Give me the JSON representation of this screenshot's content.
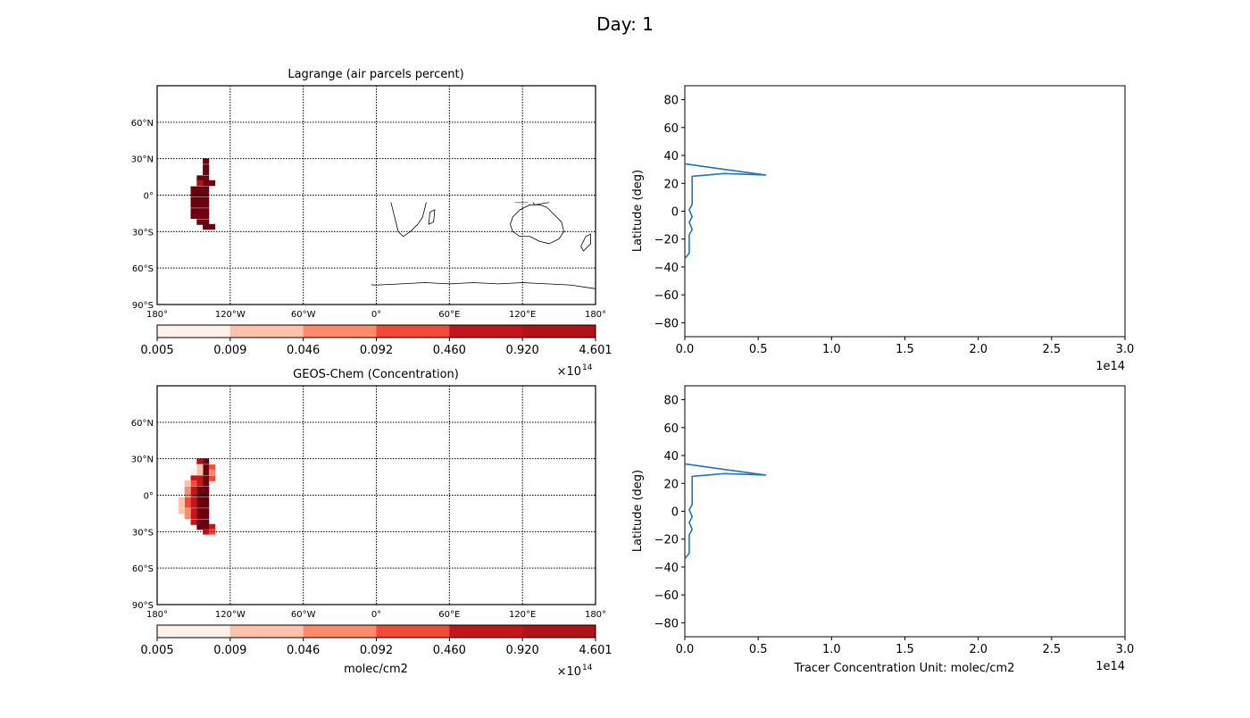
{
  "figure": {
    "title": "Day: 1"
  },
  "chart_data": [
    {
      "type": "heatmap",
      "title": "Lagrange (air parcels percent)",
      "projection": "equirectangular",
      "xlim": [
        -180,
        180
      ],
      "ylim": [
        -90,
        90
      ],
      "xticks": [
        -180,
        -120,
        -60,
        0,
        60,
        120,
        180
      ],
      "xtick_labels": [
        "180°",
        "120°W",
        "60°W",
        "0°",
        "60°E",
        "120°E",
        "180°"
      ],
      "yticks": [
        60,
        30,
        0,
        -30,
        -60,
        -90
      ],
      "ytick_labels": [
        "60°N",
        "30°N",
        "0°",
        "30°S",
        "60°S",
        "90°S"
      ],
      "grid": true,
      "coastlines": true,
      "cells": [
        {
          "lon": -140,
          "lat": 28,
          "level": 6
        },
        {
          "lon": -140,
          "lat": 23,
          "level": 6
        },
        {
          "lon": -140,
          "lat": 19,
          "level": 6
        },
        {
          "lon": -140,
          "lat": 14,
          "level": 6
        },
        {
          "lon": -140,
          "lat": 10,
          "level": 6
        },
        {
          "lon": -140,
          "lat": 5,
          "level": 6
        },
        {
          "lon": -140,
          "lat": 1,
          "level": 6
        },
        {
          "lon": -140,
          "lat": -4,
          "level": 6
        },
        {
          "lon": -140,
          "lat": -8,
          "level": 6
        },
        {
          "lon": -140,
          "lat": -13,
          "level": 6
        },
        {
          "lon": -140,
          "lat": -17,
          "level": 6
        },
        {
          "lon": -140,
          "lat": -22,
          "level": 6
        },
        {
          "lon": -140,
          "lat": -26,
          "level": 6
        },
        {
          "lon": -145,
          "lat": 14,
          "level": 6
        },
        {
          "lon": -145,
          "lat": 10,
          "level": 5
        },
        {
          "lon": -145,
          "lat": 5,
          "level": 6
        },
        {
          "lon": -145,
          "lat": 1,
          "level": 6
        },
        {
          "lon": -145,
          "lat": -4,
          "level": 6
        },
        {
          "lon": -145,
          "lat": -8,
          "level": 6
        },
        {
          "lon": -145,
          "lat": -13,
          "level": 6
        },
        {
          "lon": -145,
          "lat": -17,
          "level": 6
        },
        {
          "lon": -145,
          "lat": -22,
          "level": 6
        },
        {
          "lon": -150,
          "lat": 5,
          "level": 6
        },
        {
          "lon": -150,
          "lat": 1,
          "level": 6
        },
        {
          "lon": -150,
          "lat": -4,
          "level": 6
        },
        {
          "lon": -150,
          "lat": -8,
          "level": 6
        },
        {
          "lon": -150,
          "lat": -13,
          "level": 6
        },
        {
          "lon": -150,
          "lat": -17,
          "level": 6
        },
        {
          "lon": -135,
          "lat": 10,
          "level": 6
        },
        {
          "lon": -135,
          "lat": -26,
          "level": 6
        }
      ],
      "colorbar": {
        "labels": [
          "0.005",
          "0.009",
          "0.046",
          "0.092",
          "0.460",
          "0.920",
          "4.601"
        ],
        "colors": [
          "#fff0ea",
          "#fcc2aa",
          "#fc8a6b",
          "#f14b37",
          "#c3161c",
          "#b01218",
          "#6b010e"
        ],
        "multiplier": "×10",
        "exponent": "14",
        "label": ""
      }
    },
    {
      "type": "line",
      "x_values": [
        0,
        3000000000000.0,
        3000000000000.0,
        3000000000000.0,
        3000000000000.0,
        5000000000000.0,
        3000000000000.0,
        5000000000000.0,
        3000000000000.0,
        5000000000000.0,
        5000000000000.0,
        5000000000000.0,
        5000000000000.0,
        5000000000000.0,
        5000000000000.0,
        27000000000000.0,
        55000000000000.0,
        27000000000000.0,
        0
      ],
      "y_values": [
        -34,
        -30,
        -26,
        -22,
        -17,
        -13,
        -8,
        -4,
        1,
        5,
        10,
        14,
        19,
        23,
        25,
        27,
        26,
        30,
        34
      ],
      "xlim": [
        0,
        300000000000000.0
      ],
      "ylim": [
        -90,
        90
      ],
      "xticks": [
        "0.0",
        "0.5",
        "1.0",
        "1.5",
        "2.0",
        "2.5",
        "3.0"
      ],
      "yticks": [
        "80",
        "60",
        "40",
        "20",
        "0",
        "−20",
        "−40",
        "−60",
        "−80"
      ],
      "offset_text": "1e14",
      "ylabel": "Latitude (deg)",
      "xlabel": "",
      "color": "#1f77b4"
    },
    {
      "type": "heatmap",
      "title": "GEOS-Chem (Concentration)",
      "projection": "equirectangular",
      "xlim": [
        -180,
        180
      ],
      "ylim": [
        -90,
        90
      ],
      "xticks": [
        -180,
        -120,
        -60,
        0,
        60,
        120,
        180
      ],
      "xtick_labels": [
        "180°",
        "120°W",
        "60°W",
        "0°",
        "60°E",
        "120°E",
        "180°"
      ],
      "yticks": [
        60,
        30,
        0,
        -30,
        -60,
        -90
      ],
      "ytick_labels": [
        "60°N",
        "30°N",
        "0°",
        "30°S",
        "60°S",
        "90°S"
      ],
      "grid": true,
      "coastlines": true,
      "cells": [
        {
          "lon": -140,
          "lat": 28,
          "level": 6
        },
        {
          "lon": -140,
          "lat": 23,
          "level": 6
        },
        {
          "lon": -140,
          "lat": 19,
          "level": 6
        },
        {
          "lon": -140,
          "lat": 14,
          "level": 6
        },
        {
          "lon": -140,
          "lat": 10,
          "level": 6
        },
        {
          "lon": -140,
          "lat": 5,
          "level": 6
        },
        {
          "lon": -140,
          "lat": 1,
          "level": 6
        },
        {
          "lon": -140,
          "lat": -4,
          "level": 6
        },
        {
          "lon": -140,
          "lat": -8,
          "level": 6
        },
        {
          "lon": -140,
          "lat": -13,
          "level": 6
        },
        {
          "lon": -140,
          "lat": -17,
          "level": 6
        },
        {
          "lon": -140,
          "lat": -22,
          "level": 6
        },
        {
          "lon": -140,
          "lat": -26,
          "level": 6
        },
        {
          "lon": -145,
          "lat": 28,
          "level": 5
        },
        {
          "lon": -145,
          "lat": 23,
          "level": 1
        },
        {
          "lon": -145,
          "lat": 19,
          "level": 1
        },
        {
          "lon": -145,
          "lat": 14,
          "level": 4
        },
        {
          "lon": -145,
          "lat": 10,
          "level": 4
        },
        {
          "lon": -145,
          "lat": 5,
          "level": 6
        },
        {
          "lon": -145,
          "lat": 1,
          "level": 6
        },
        {
          "lon": -145,
          "lat": -4,
          "level": 6
        },
        {
          "lon": -145,
          "lat": -8,
          "level": 6
        },
        {
          "lon": -145,
          "lat": -13,
          "level": 6
        },
        {
          "lon": -145,
          "lat": -17,
          "level": 6
        },
        {
          "lon": -145,
          "lat": -22,
          "level": 6
        },
        {
          "lon": -145,
          "lat": -26,
          "level": 6
        },
        {
          "lon": -150,
          "lat": 19,
          "level": 0
        },
        {
          "lon": -150,
          "lat": 14,
          "level": 4
        },
        {
          "lon": -150,
          "lat": 10,
          "level": 3
        },
        {
          "lon": -150,
          "lat": 5,
          "level": 4
        },
        {
          "lon": -150,
          "lat": 1,
          "level": 4
        },
        {
          "lon": -150,
          "lat": -4,
          "level": 4
        },
        {
          "lon": -150,
          "lat": -8,
          "level": 4
        },
        {
          "lon": -150,
          "lat": -13,
          "level": 4
        },
        {
          "lon": -150,
          "lat": -17,
          "level": 4
        },
        {
          "lon": -150,
          "lat": -22,
          "level": 4
        },
        {
          "lon": -155,
          "lat": 10,
          "level": 1
        },
        {
          "lon": -155,
          "lat": 5,
          "level": 2
        },
        {
          "lon": -155,
          "lat": 1,
          "level": 2
        },
        {
          "lon": -155,
          "lat": -4,
          "level": 3
        },
        {
          "lon": -155,
          "lat": -8,
          "level": 3
        },
        {
          "lon": -155,
          "lat": -13,
          "level": 2
        },
        {
          "lon": -155,
          "lat": -17,
          "level": 2
        },
        {
          "lon": -160,
          "lat": -4,
          "level": 1
        },
        {
          "lon": -160,
          "lat": -8,
          "level": 1
        },
        {
          "lon": -160,
          "lat": -13,
          "level": 1
        },
        {
          "lon": -135,
          "lat": 23,
          "level": 3
        },
        {
          "lon": -135,
          "lat": 19,
          "level": 2
        },
        {
          "lon": -135,
          "lat": 14,
          "level": 3
        },
        {
          "lon": -135,
          "lat": -26,
          "level": 4
        },
        {
          "lon": -140,
          "lat": -30,
          "level": 4
        },
        {
          "lon": -135,
          "lat": -30,
          "level": 3
        }
      ],
      "colorbar": {
        "labels": [
          "0.005",
          "0.009",
          "0.046",
          "0.092",
          "0.460",
          "0.920",
          "4.601"
        ],
        "colors": [
          "#fff0ea",
          "#fcc2aa",
          "#fc8a6b",
          "#f14b37",
          "#c3161c",
          "#b01218",
          "#6b010e"
        ],
        "multiplier": "×10",
        "exponent": "14",
        "label": "molec/cm2"
      }
    },
    {
      "type": "line",
      "x_values": [
        0,
        3000000000000.0,
        3000000000000.0,
        3000000000000.0,
        3000000000000.0,
        5000000000000.0,
        3000000000000.0,
        5000000000000.0,
        3000000000000.0,
        5000000000000.0,
        5000000000000.0,
        5000000000000.0,
        5000000000000.0,
        5000000000000.0,
        5000000000000.0,
        27000000000000.0,
        55000000000000.0,
        27000000000000.0,
        0
      ],
      "y_values": [
        -34,
        -30,
        -26,
        -22,
        -17,
        -13,
        -8,
        -4,
        1,
        5,
        10,
        14,
        19,
        23,
        25,
        27,
        26,
        30,
        34
      ],
      "xlim": [
        0,
        300000000000000.0
      ],
      "ylim": [
        -90,
        90
      ],
      "xticks": [
        "0.0",
        "0.5",
        "1.0",
        "1.5",
        "2.0",
        "2.5",
        "3.0"
      ],
      "yticks": [
        "80",
        "60",
        "40",
        "20",
        "0",
        "−20",
        "−40",
        "−60",
        "−80"
      ],
      "offset_text": "1e14",
      "ylabel": "Latitude (deg)",
      "xlabel": "Tracer Concentration Unit: molec/cm2",
      "color": "#1f77b4"
    }
  ]
}
